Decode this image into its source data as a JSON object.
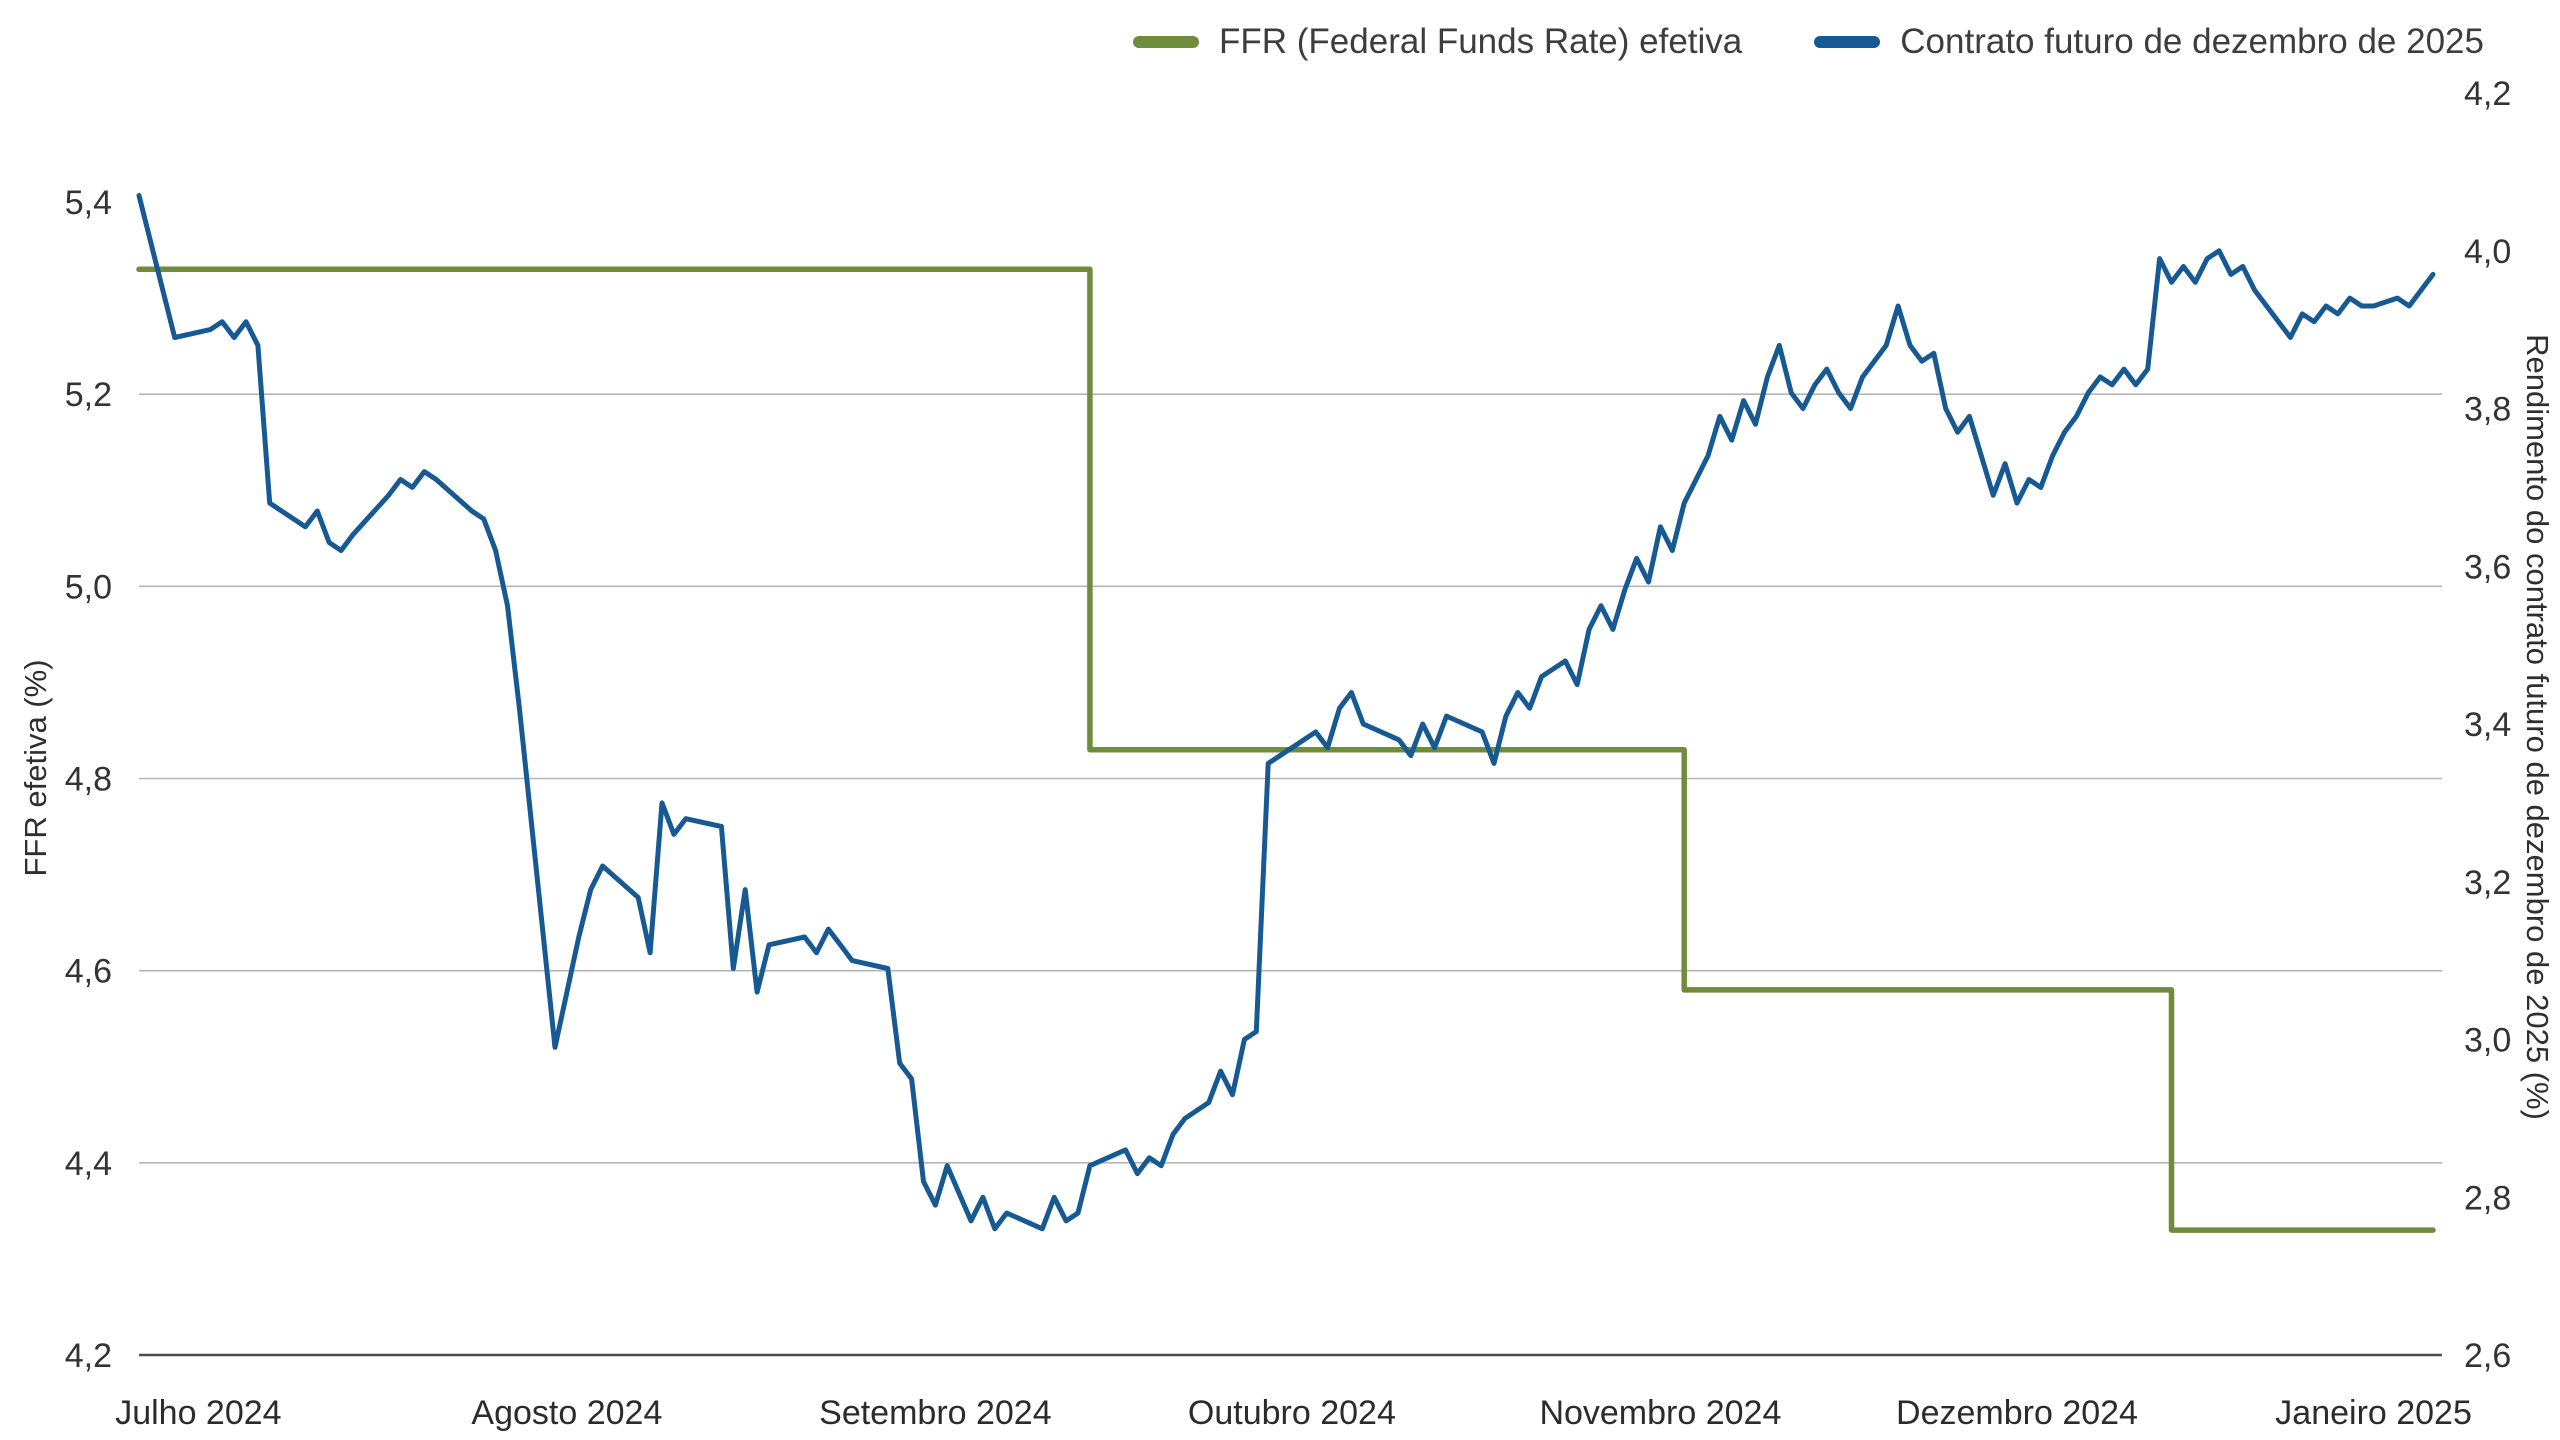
{
  "page": {
    "background": "#ffffff"
  },
  "axes": {
    "left_title": "FFR efetiva (%)",
    "right_title": "Rendimento do contrato futuro de dezembro de 2025 (%)"
  },
  "chart_data": {
    "type": "line",
    "title": "",
    "legend_position": "top-right",
    "grid": "horizontal",
    "x_unit": "days_from_start (1 jul 2024 = 0)",
    "x_domain": [
      0,
      193
    ],
    "x_ticks": [
      {
        "label": "Julho 2024",
        "day": 5
      },
      {
        "label": "Agosto 2024",
        "day": 36
      },
      {
        "label": "Setembro 2024",
        "day": 67
      },
      {
        "label": "Outubro 2024",
        "day": 97
      },
      {
        "label": "Novembro 2024",
        "day": 128
      },
      {
        "label": "Dezembro 2024",
        "day": 158
      },
      {
        "label": "Janeiro 2025",
        "day": 188
      }
    ],
    "left_axis": {
      "title": "FFR efetiva (%)",
      "min": 4.2,
      "max": 5.4,
      "ticks": [
        "5,4",
        "5,2",
        "5,0",
        "4,8",
        "4,6",
        "4,4",
        "4,2"
      ],
      "tick_values": [
        5.4,
        5.2,
        5.0,
        4.8,
        4.6,
        4.4,
        4.2
      ]
    },
    "right_axis": {
      "title": "Rendimento do contrato futuro de dezembro de 2025 (%)",
      "min": 2.6,
      "max": 4.2,
      "ticks": [
        "4,2",
        "4,0",
        "3,8",
        "3,6",
        "3,4",
        "3,2",
        "3,0",
        "2,8",
        "2,6"
      ],
      "tick_values": [
        4.2,
        4.0,
        3.8,
        3.6,
        3.4,
        3.2,
        3.0,
        2.8,
        2.6
      ]
    },
    "gridlines": {
      "axis": "left",
      "values": [
        5.2,
        5.0,
        4.8,
        4.6,
        4.4
      ]
    },
    "series": [
      {
        "name": "FFR (Federal Funds Rate) efetiva",
        "axis": "left",
        "color": "#6f8c3c",
        "width": 5.5,
        "step": true,
        "points": [
          [
            0,
            5.33
          ],
          [
            80,
            5.33
          ],
          [
            80,
            4.83
          ],
          [
            130,
            4.83
          ],
          [
            130,
            4.58
          ],
          [
            171,
            4.58
          ],
          [
            171,
            4.33
          ],
          [
            193,
            4.33
          ]
        ]
      },
      {
        "name": "Contrato futuro de dezembro de 2025",
        "axis": "right",
        "color": "#175a93",
        "width": 5,
        "step": false,
        "points": [
          [
            0,
            4.07
          ],
          [
            1,
            4.01
          ],
          [
            2,
            3.95
          ],
          [
            3,
            3.89
          ],
          [
            6,
            3.9
          ],
          [
            7,
            3.91
          ],
          [
            8,
            3.89
          ],
          [
            9,
            3.91
          ],
          [
            10,
            3.88
          ],
          [
            11,
            3.68
          ],
          [
            14,
            3.65
          ],
          [
            15,
            3.67
          ],
          [
            16,
            3.63
          ],
          [
            17,
            3.62
          ],
          [
            18,
            3.64
          ],
          [
            21,
            3.69
          ],
          [
            22,
            3.71
          ],
          [
            23,
            3.7
          ],
          [
            24,
            3.72
          ],
          [
            25,
            3.71
          ],
          [
            28,
            3.67
          ],
          [
            29,
            3.66
          ],
          [
            30,
            3.62
          ],
          [
            31,
            3.55
          ],
          [
            32,
            3.42
          ],
          [
            35,
            2.99
          ],
          [
            36,
            3.06
          ],
          [
            37,
            3.13
          ],
          [
            38,
            3.19
          ],
          [
            39,
            3.22
          ],
          [
            42,
            3.18
          ],
          [
            43,
            3.11
          ],
          [
            44,
            3.3
          ],
          [
            45,
            3.26
          ],
          [
            46,
            3.28
          ],
          [
            49,
            3.27
          ],
          [
            50,
            3.09
          ],
          [
            51,
            3.19
          ],
          [
            52,
            3.06
          ],
          [
            53,
            3.12
          ],
          [
            56,
            3.13
          ],
          [
            57,
            3.11
          ],
          [
            58,
            3.14
          ],
          [
            59,
            3.12
          ],
          [
            60,
            3.1
          ],
          [
            63,
            3.09
          ],
          [
            64,
            2.97
          ],
          [
            65,
            2.95
          ],
          [
            66,
            2.82
          ],
          [
            67,
            2.79
          ],
          [
            68,
            2.84
          ],
          [
            70,
            2.77
          ],
          [
            71,
            2.8
          ],
          [
            72,
            2.76
          ],
          [
            73,
            2.78
          ],
          [
            76,
            2.76
          ],
          [
            77,
            2.8
          ],
          [
            78,
            2.77
          ],
          [
            79,
            2.78
          ],
          [
            80,
            2.84
          ],
          [
            83,
            2.86
          ],
          [
            84,
            2.83
          ],
          [
            85,
            2.85
          ],
          [
            86,
            2.84
          ],
          [
            87,
            2.88
          ],
          [
            88,
            2.9
          ],
          [
            90,
            2.92
          ],
          [
            91,
            2.96
          ],
          [
            92,
            2.93
          ],
          [
            93,
            3.0
          ],
          [
            94,
            3.01
          ],
          [
            95,
            3.35
          ],
          [
            96,
            3.36
          ],
          [
            99,
            3.39
          ],
          [
            100,
            3.37
          ],
          [
            101,
            3.42
          ],
          [
            102,
            3.44
          ],
          [
            103,
            3.4
          ],
          [
            106,
            3.38
          ],
          [
            107,
            3.36
          ],
          [
            108,
            3.4
          ],
          [
            109,
            3.37
          ],
          [
            110,
            3.41
          ],
          [
            113,
            3.39
          ],
          [
            114,
            3.35
          ],
          [
            115,
            3.41
          ],
          [
            116,
            3.44
          ],
          [
            117,
            3.42
          ],
          [
            118,
            3.46
          ],
          [
            120,
            3.48
          ],
          [
            121,
            3.45
          ],
          [
            122,
            3.52
          ],
          [
            123,
            3.55
          ],
          [
            124,
            3.52
          ],
          [
            125,
            3.57
          ],
          [
            126,
            3.61
          ],
          [
            127,
            3.58
          ],
          [
            128,
            3.65
          ],
          [
            129,
            3.62
          ],
          [
            130,
            3.68
          ],
          [
            131,
            3.71
          ],
          [
            132,
            3.74
          ],
          [
            133,
            3.79
          ],
          [
            134,
            3.76
          ],
          [
            135,
            3.81
          ],
          [
            136,
            3.78
          ],
          [
            137,
            3.84
          ],
          [
            138,
            3.88
          ],
          [
            139,
            3.82
          ],
          [
            140,
            3.8
          ],
          [
            141,
            3.83
          ],
          [
            142,
            3.85
          ],
          [
            143,
            3.82
          ],
          [
            144,
            3.8
          ],
          [
            145,
            3.84
          ],
          [
            147,
            3.88
          ],
          [
            148,
            3.93
          ],
          [
            149,
            3.88
          ],
          [
            150,
            3.86
          ],
          [
            151,
            3.87
          ],
          [
            152,
            3.8
          ],
          [
            153,
            3.77
          ],
          [
            154,
            3.79
          ],
          [
            155,
            3.74
          ],
          [
            156,
            3.69
          ],
          [
            157,
            3.73
          ],
          [
            158,
            3.68
          ],
          [
            159,
            3.71
          ],
          [
            160,
            3.7
          ],
          [
            161,
            3.74
          ],
          [
            162,
            3.77
          ],
          [
            163,
            3.79
          ],
          [
            164,
            3.82
          ],
          [
            165,
            3.84
          ],
          [
            166,
            3.83
          ],
          [
            167,
            3.85
          ],
          [
            168,
            3.83
          ],
          [
            169,
            3.85
          ],
          [
            170,
            3.99
          ],
          [
            171,
            3.96
          ],
          [
            172,
            3.98
          ],
          [
            173,
            3.96
          ],
          [
            174,
            3.99
          ],
          [
            175,
            4.0
          ],
          [
            176,
            3.97
          ],
          [
            177,
            3.98
          ],
          [
            178,
            3.95
          ],
          [
            179,
            3.93
          ],
          [
            180,
            3.91
          ],
          [
            181,
            3.89
          ],
          [
            182,
            3.92
          ],
          [
            183,
            3.91
          ],
          [
            184,
            3.93
          ],
          [
            185,
            3.92
          ],
          [
            186,
            3.94
          ],
          [
            187,
            3.93
          ],
          [
            188,
            3.93
          ],
          [
            190,
            3.94
          ],
          [
            191,
            3.93
          ],
          [
            193,
            3.97
          ]
        ]
      }
    ]
  }
}
